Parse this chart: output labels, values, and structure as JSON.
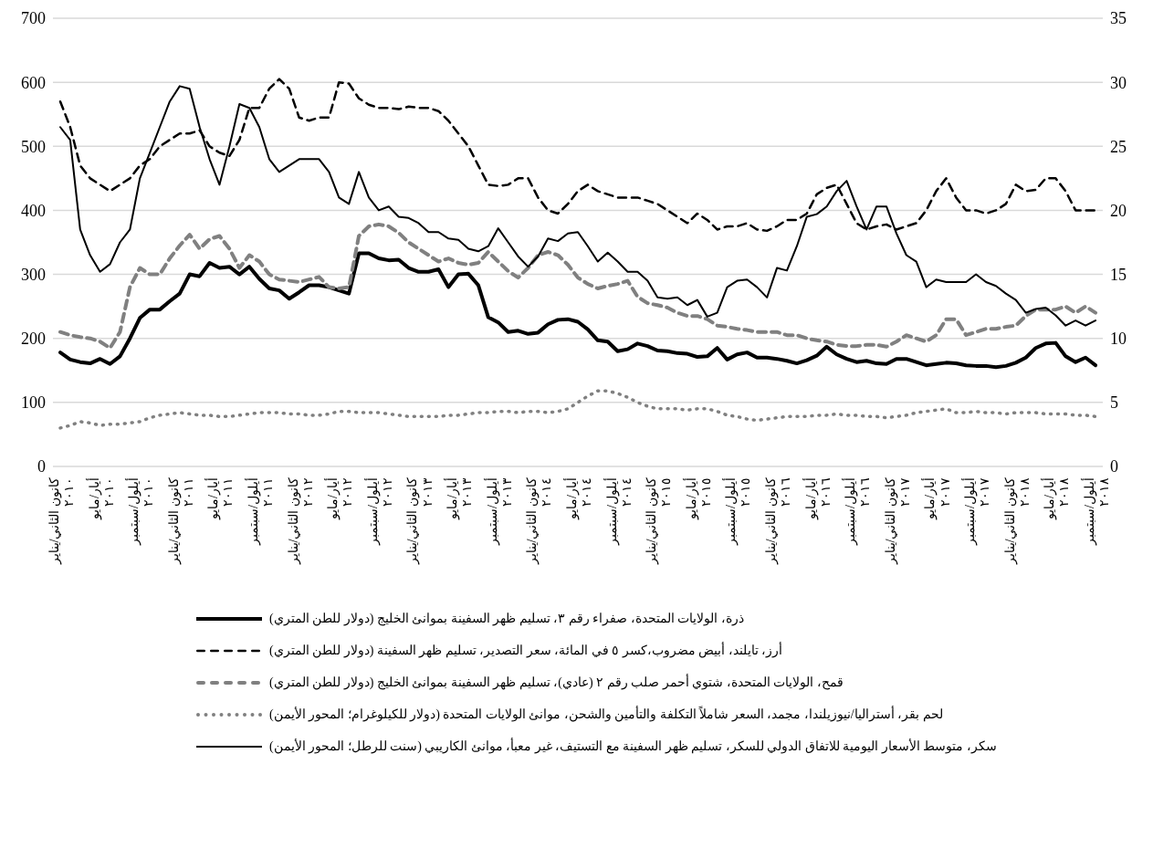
{
  "chart_data": {
    "type": "line",
    "categories": [
      "كانون الثاني/يناير ٢٠١٠",
      null,
      null,
      null,
      "أيار/مايو ٢٠١٠",
      null,
      null,
      null,
      "أيلول/سبتمبر ٢٠١٠",
      null,
      null,
      null,
      "كانون الثاني/يناير ٢٠١١",
      null,
      null,
      null,
      "أيار/مايو ٢٠١١",
      null,
      null,
      null,
      "أيلول/سبتمبر ٢٠١١",
      null,
      null,
      null,
      "كانون الثاني/يناير ٢٠١٢",
      null,
      null,
      null,
      "أيار/مايو ٢٠١٢",
      null,
      null,
      null,
      "أيلول/سبتمبر ٢٠١٢",
      null,
      null,
      null,
      "كانون الثاني/يناير ٢٠١٣",
      null,
      null,
      null,
      "أيار/مايو ٢٠١٣",
      null,
      null,
      null,
      "أيلول/سبتمبر ٢٠١٣",
      null,
      null,
      null,
      "كانون الثاني/يناير ٢٠١٤",
      null,
      null,
      null,
      "أيار/مايو ٢٠١٤",
      null,
      null,
      null,
      "أيلول/سبتمبر ٢٠١٤",
      null,
      null,
      null,
      "كانون الثاني/يناير ٢٠١٥",
      null,
      null,
      null,
      "أيار/مايو ٢٠١٥",
      null,
      null,
      null,
      "أيلول/سبتمبر ٢٠١٥",
      null,
      null,
      null,
      "كانون الثاني/يناير ٢٠١٦",
      null,
      null,
      null,
      "أيار/مايو ٢٠١٦",
      null,
      null,
      null,
      "أيلول/سبتمبر ٢٠١٦",
      null,
      null,
      null,
      "كانون الثاني/يناير ٢٠١٧",
      null,
      null,
      null,
      "أيار/مايو ٢٠١٧",
      null,
      null,
      null,
      "أيلول/سبتمبر ٢٠١٧",
      null,
      null,
      null,
      "كانون الثاني/يناير ٢٠١٨",
      null,
      null,
      null,
      "أيار/مايو ٢٠١٨",
      null,
      null,
      null,
      "أيلول/سبتمبر ٢٠١٨"
    ],
    "series": [
      {
        "name": "ذرة، الولايات المتحدة، صفراء رقم ٣، تسليم ظهر السفينة بموانئ الخليج (دولار للطن المتري)",
        "color": "#000000",
        "line_style": "solid",
        "values": [
          178,
          167,
          163,
          161,
          168,
          160,
          172,
          200,
          232,
          245,
          245,
          258,
          270,
          300,
          297,
          318,
          310,
          312,
          300,
          312,
          293,
          278,
          275,
          262,
          272,
          283,
          283,
          280,
          275,
          270,
          333,
          333,
          325,
          322,
          323,
          310,
          304,
          304,
          308,
          280,
          300,
          301,
          283,
          233,
          225,
          210,
          212,
          207,
          209,
          222,
          229,
          230,
          226,
          214,
          197,
          195,
          180,
          183,
          192,
          188,
          181,
          180,
          177,
          176,
          171,
          172,
          185,
          167,
          175,
          178,
          170,
          170,
          168,
          165,
          161,
          166,
          173,
          187,
          175,
          168,
          163,
          165,
          161,
          160,
          168,
          168,
          163,
          158,
          160,
          162,
          161,
          158,
          157,
          157,
          155,
          157,
          162,
          170,
          185,
          192,
          193,
          172,
          163,
          170,
          158
        ]
      },
      {
        "name": "أرز، تايلند، أبيض مضروب،كسر ٥ في المائة، سعر التصدير، تسليم ظهر السفينة (دولار للطن المتري)",
        "color": "#000000",
        "line_style": "dashed",
        "values": [
          570,
          530,
          470,
          450,
          440,
          430,
          440,
          450,
          470,
          480,
          500,
          510,
          520,
          520,
          525,
          500,
          490,
          485,
          510,
          560,
          560,
          590,
          605,
          590,
          545,
          540,
          545,
          545,
          600,
          598,
          575,
          565,
          560,
          560,
          558,
          562,
          560,
          560,
          555,
          540,
          520,
          500,
          470,
          440,
          438,
          440,
          450,
          450,
          420,
          400,
          395,
          410,
          430,
          440,
          430,
          425,
          420,
          420,
          420,
          415,
          410,
          400,
          390,
          380,
          395,
          385,
          370,
          375,
          375,
          380,
          370,
          368,
          375,
          385,
          385,
          395,
          425,
          435,
          440,
          410,
          380,
          370,
          375,
          378,
          370,
          375,
          380,
          400,
          430,
          450,
          420,
          400,
          400,
          395,
          400,
          410,
          440,
          430,
          432,
          450,
          450,
          430,
          400,
          400,
          400
        ]
      },
      {
        "name": "قمح، الولايات المتحدة، شتوي أحمر صلب رقم ٢ (عادي)، تسليم ظهر السفينة بموانئ الخليج (دولار للطن المتري)",
        "color": "#808080",
        "line_style": "dashed",
        "values": [
          210,
          205,
          202,
          200,
          195,
          185,
          210,
          280,
          310,
          300,
          300,
          325,
          345,
          362,
          340,
          355,
          360,
          340,
          310,
          330,
          320,
          300,
          292,
          290,
          288,
          292,
          296,
          280,
          278,
          280,
          360,
          375,
          378,
          375,
          365,
          350,
          340,
          330,
          320,
          325,
          318,
          315,
          318,
          335,
          320,
          305,
          295,
          310,
          330,
          335,
          330,
          315,
          295,
          285,
          278,
          282,
          285,
          290,
          265,
          255,
          252,
          248,
          240,
          235,
          235,
          230,
          220,
          218,
          215,
          213,
          210,
          210,
          210,
          205,
          205,
          200,
          197,
          195,
          190,
          188,
          188,
          190,
          190,
          187,
          195,
          205,
          200,
          195,
          205,
          230,
          230,
          205,
          210,
          215,
          215,
          218,
          220,
          235,
          245,
          245,
          245,
          250,
          240,
          250,
          240
        ]
      },
      {
        "name": "لحم بقر، أستراليا/نيوزيلندا، مجمد، السعر شاملاً التكلفة والتأمين والشحن، موانئ الولايات المتحدة (دولار للكيلوغرام؛ المحور الأيمن)",
        "color": "#808080",
        "line_style": "dotted",
        "axis": "y2",
        "values": [
          3.0,
          3.2,
          3.5,
          3.4,
          3.2,
          3.3,
          3.3,
          3.4,
          3.5,
          3.8,
          4.0,
          4.1,
          4.2,
          4.1,
          4.0,
          4.0,
          3.9,
          3.9,
          4.0,
          4.1,
          4.2,
          4.2,
          4.2,
          4.1,
          4.1,
          4.0,
          4.0,
          4.1,
          4.3,
          4.3,
          4.2,
          4.2,
          4.2,
          4.1,
          4.0,
          3.9,
          3.9,
          3.9,
          3.9,
          4.0,
          4.0,
          4.1,
          4.2,
          4.2,
          4.3,
          4.3,
          4.2,
          4.3,
          4.3,
          4.2,
          4.3,
          4.5,
          5.0,
          5.5,
          5.9,
          5.9,
          5.7,
          5.4,
          5.0,
          4.7,
          4.5,
          4.5,
          4.5,
          4.4,
          4.5,
          4.5,
          4.3,
          4.0,
          3.9,
          3.7,
          3.6,
          3.7,
          3.8,
          3.9,
          3.9,
          3.9,
          4.0,
          4.0,
          4.1,
          4.0,
          4.0,
          3.9,
          3.9,
          3.8,
          3.9,
          4.0,
          4.2,
          4.3,
          4.4,
          4.5,
          4.2,
          4.2,
          4.3,
          4.2,
          4.2,
          4.1,
          4.2,
          4.2,
          4.2,
          4.1,
          4.1,
          4.1,
          4.0,
          4.0,
          3.9
        ]
      },
      {
        "name": "سكر، متوسط الأسعار اليومية للاتفاق الدولي للسكر، تسليم ظهر السفينة مع التستيف، غير معبأ، موانئ الكاريبي (سنت للرطل؛ المحور الأيمن)",
        "color": "#000000",
        "line_style": "solid",
        "axis": "y2",
        "values": [
          26.5,
          25.5,
          18.5,
          16.5,
          15.2,
          15.8,
          17.5,
          18.5,
          22.5,
          24.5,
          26.5,
          28.5,
          29.7,
          29.5,
          26.5,
          24,
          22,
          25,
          28.3,
          28,
          26.5,
          24,
          23,
          23.5,
          24,
          24,
          24,
          23,
          21,
          20.5,
          23,
          21,
          20,
          20.3,
          19.5,
          19.4,
          19,
          18.3,
          18.3,
          17.8,
          17.7,
          17,
          16.8,
          17.2,
          18.6,
          17.5,
          16.4,
          15.6,
          16.4,
          17.8,
          17.6,
          18.2,
          18.3,
          17.2,
          16,
          16.7,
          16,
          15.2,
          15.2,
          14.5,
          13.2,
          13.1,
          13.2,
          12.6,
          13.0,
          11.7,
          12.0,
          14.0,
          14.5,
          14.6,
          14.0,
          13.2,
          15.5,
          15.3,
          17.2,
          19.5,
          19.7,
          20.3,
          21.5,
          22.3,
          20.3,
          18.5,
          20.3,
          20.3,
          18.2,
          16.5,
          16.0,
          14.0,
          14.6,
          14.4,
          14.4,
          14.4,
          15.0,
          14.4,
          14.1,
          13.5,
          13.0,
          12.0,
          12.3,
          12.4,
          11.8,
          11.0,
          11.4,
          11.0,
          11.4
        ]
      }
    ],
    "ylim": [
      0,
      700
    ],
    "yticks": [
      0,
      100,
      200,
      300,
      400,
      500,
      600,
      700
    ],
    "y2lim": [
      0,
      35
    ],
    "y2ticks": [
      0,
      5,
      10,
      15,
      20,
      25,
      30,
      35
    ],
    "grid": "y",
    "legend": "bottom",
    "marker": "none"
  }
}
